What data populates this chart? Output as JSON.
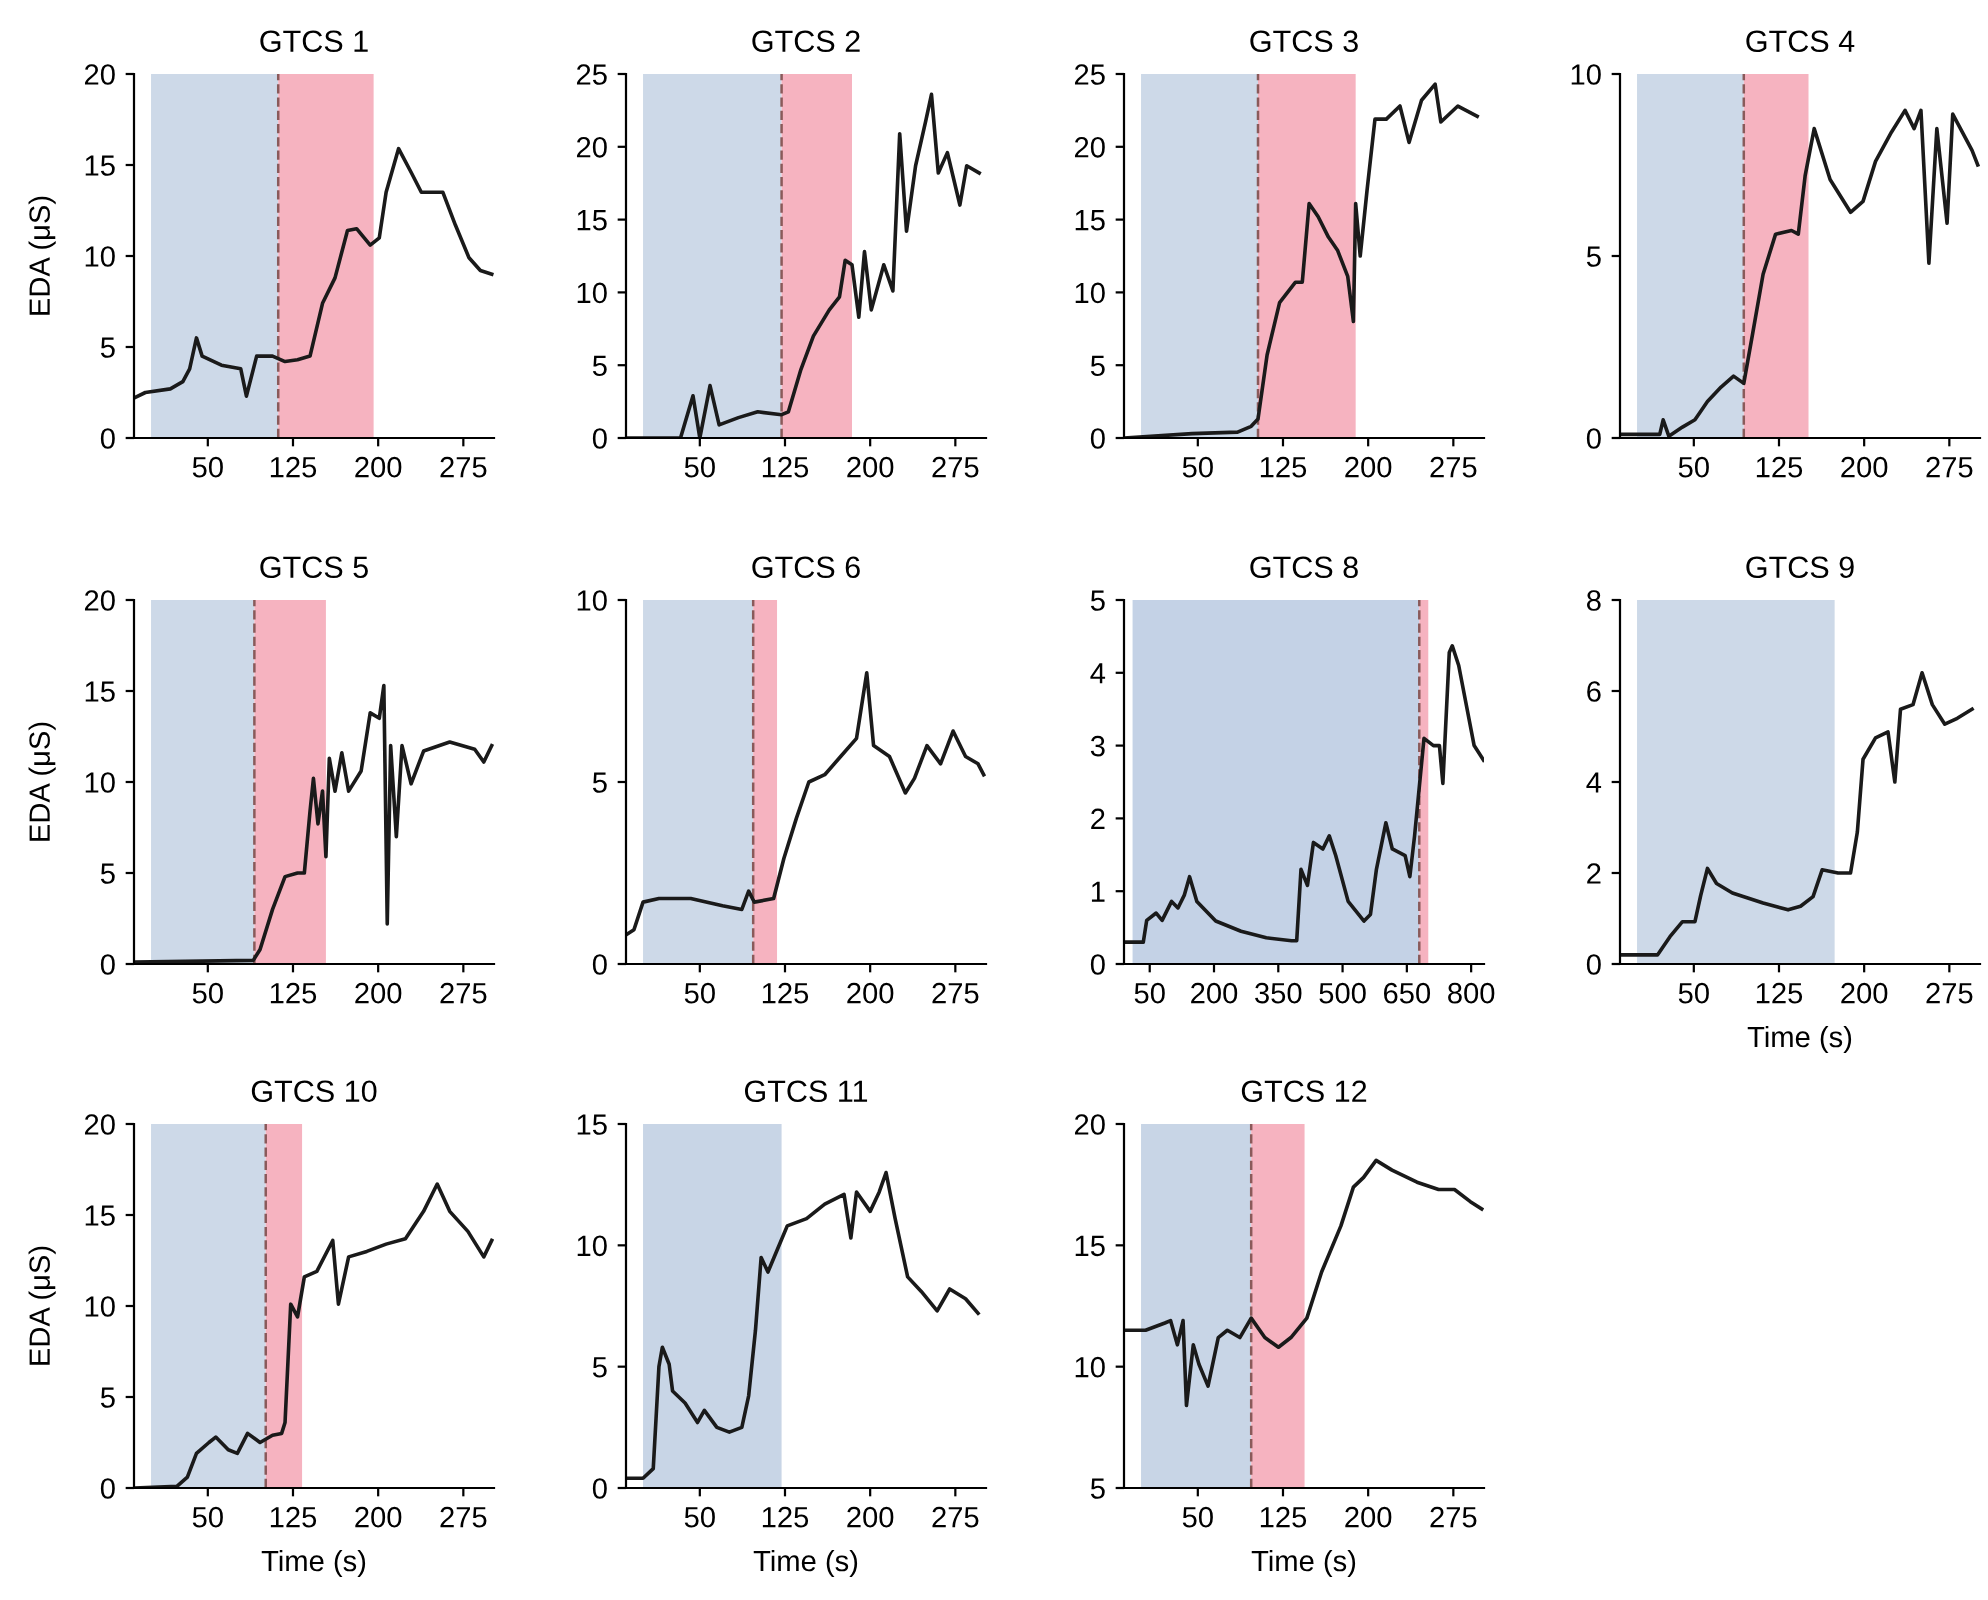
{
  "chart_data": [
    {
      "type": "line",
      "title": "GTCS 1",
      "ylabel": "EDA (μS)",
      "xlim": [
        -15,
        302
      ],
      "xticks": [
        50,
        125,
        200,
        275
      ],
      "ylim": [
        0,
        20
      ],
      "yticks": [
        0,
        5,
        10,
        15,
        20
      ],
      "grid": false,
      "tick_labels": "xy",
      "bands": [
        {
          "axis": "x",
          "from": 0,
          "to": 112,
          "color": "#cdd9e8"
        },
        {
          "axis": "x",
          "from": 112,
          "to": 196,
          "color": "#f6b3c0"
        }
      ],
      "ref_lines": [
        {
          "axis": "x",
          "value": 112,
          "color": "#8a5a5a",
          "line_style": "dashed"
        }
      ],
      "series": [
        {
          "color": "#1a1a1a",
          "x": [
            -15,
            -5,
            17,
            28,
            34,
            40,
            45,
            62,
            79,
            84,
            93,
            107,
            118,
            129,
            140,
            151,
            162,
            173,
            181,
            193,
            201,
            207,
            218,
            229,
            238,
            257,
            268,
            280,
            290,
            300
          ],
          "values": [
            2.2,
            2.5,
            2.7,
            3.1,
            3.8,
            5.5,
            4.5,
            4.0,
            3.8,
            2.3,
            4.5,
            4.5,
            4.2,
            4.3,
            4.5,
            7.4,
            8.8,
            11.4,
            11.5,
            10.6,
            11.0,
            13.5,
            15.9,
            14.6,
            13.5,
            13.5,
            11.7,
            9.9,
            9.2,
            9.0
          ]
        }
      ]
    },
    {
      "type": "line",
      "title": "GTCS 2",
      "xlim": [
        -15,
        302
      ],
      "xticks": [
        50,
        125,
        200,
        275
      ],
      "ylim": [
        0,
        25
      ],
      "yticks": [
        0,
        5,
        10,
        15,
        20,
        25
      ],
      "grid": false,
      "bands": [
        {
          "axis": "x",
          "from": 0,
          "to": 122,
          "color": "#cdd9e8"
        },
        {
          "axis": "x",
          "from": 122,
          "to": 184,
          "color": "#f6b3c0"
        }
      ],
      "ref_lines": [
        {
          "axis": "x",
          "value": 122,
          "color": "#8a5a5a",
          "line_style": "dashed"
        }
      ],
      "series": [
        {
          "color": "#1a1a1a",
          "x": [
            -15,
            33,
            44,
            50,
            59,
            67,
            84,
            101,
            122,
            128,
            139,
            150,
            164,
            173,
            178,
            184,
            190,
            195,
            201,
            212,
            220,
            226,
            232,
            240,
            249,
            254,
            260,
            268,
            279,
            285,
            296
          ],
          "values": [
            0,
            0,
            2.9,
            0,
            3.6,
            0.9,
            1.4,
            1.8,
            1.6,
            1.8,
            4.7,
            7.0,
            8.8,
            9.7,
            12.2,
            11.9,
            8.3,
            12.8,
            8.8,
            11.9,
            10.1,
            20.9,
            14.2,
            18.7,
            21.8,
            23.6,
            18.2,
            19.6,
            16.0,
            18.7,
            18.2
          ]
        }
      ]
    },
    {
      "type": "line",
      "title": "GTCS 3",
      "xlim": [
        -15,
        302
      ],
      "xticks": [
        50,
        125,
        200,
        275
      ],
      "ylim": [
        0,
        25
      ],
      "yticks": [
        0,
        5,
        10,
        15,
        20,
        25
      ],
      "grid": false,
      "bands": [
        {
          "axis": "x",
          "from": 0,
          "to": 103,
          "color": "#cdd9e8"
        },
        {
          "axis": "x",
          "from": 103,
          "to": 189,
          "color": "#f6b3c0"
        }
      ],
      "ref_lines": [
        {
          "axis": "x",
          "value": 103,
          "color": "#8a5a5a",
          "line_style": "dashed"
        }
      ],
      "series": [
        {
          "color": "#1a1a1a",
          "x": [
            -15,
            45,
            85,
            97,
            103,
            111,
            122,
            136,
            142,
            148,
            156,
            165,
            173,
            182,
            187,
            189,
            193,
            199,
            206,
            216,
            228,
            236,
            247,
            259,
            264,
            279,
            296
          ],
          "values": [
            0,
            0.3,
            0.4,
            0.8,
            1.3,
            5.7,
            9.3,
            10.7,
            10.7,
            16.1,
            15.2,
            13.8,
            12.9,
            11.1,
            8.0,
            16.1,
            12.5,
            17.0,
            21.9,
            21.9,
            22.8,
            20.3,
            23.2,
            24.3,
            21.7,
            22.8,
            22.1
          ]
        }
      ]
    },
    {
      "type": "line",
      "title": "GTCS 4",
      "xlim": [
        -15,
        302
      ],
      "xticks": [
        50,
        125,
        200,
        275
      ],
      "ylim": [
        0,
        10
      ],
      "yticks": [
        0,
        5,
        10
      ],
      "grid": false,
      "bands": [
        {
          "axis": "x",
          "from": 0,
          "to": 94,
          "color": "#cdd9e8"
        },
        {
          "axis": "x",
          "from": 94,
          "to": 151,
          "color": "#f6b3c0"
        }
      ],
      "ref_lines": [
        {
          "axis": "x",
          "value": 94,
          "color": "#8a5a5a",
          "line_style": "dashed"
        }
      ],
      "series": [
        {
          "color": "#1a1a1a",
          "x": [
            -14,
            20,
            23,
            28,
            40,
            51,
            62,
            74,
            85,
            94,
            102,
            111,
            122,
            136,
            142,
            148,
            156,
            170,
            188,
            199,
            210,
            224,
            236,
            244,
            250,
            257,
            264,
            273,
            278,
            295,
            300
          ],
          "values": [
            0.1,
            0.1,
            0.5,
            0.05,
            0.3,
            0.5,
            1.0,
            1.4,
            1.7,
            1.5,
            2.9,
            4.5,
            5.6,
            5.7,
            5.6,
            7.2,
            8.5,
            7.1,
            6.2,
            6.5,
            7.6,
            8.4,
            9.0,
            8.5,
            9.0,
            4.8,
            8.5,
            5.9,
            8.9,
            7.9,
            7.5
          ]
        }
      ]
    },
    {
      "type": "line",
      "title": "GTCS 5",
      "ylabel": "EDA (μS)",
      "xlim": [
        -15,
        302
      ],
      "xticks": [
        50,
        125,
        200,
        275
      ],
      "ylim": [
        0,
        20
      ],
      "yticks": [
        0,
        5,
        10,
        15,
        20
      ],
      "grid": false,
      "bands": [
        {
          "axis": "x",
          "from": 0,
          "to": 91,
          "color": "#cdd9e8"
        },
        {
          "axis": "x",
          "from": 91,
          "to": 154,
          "color": "#f6b3c0"
        }
      ],
      "ref_lines": [
        {
          "axis": "x",
          "value": 91,
          "color": "#8a5a5a",
          "line_style": "dashed"
        }
      ],
      "series": [
        {
          "color": "#1a1a1a",
          "x": [
            -15,
            90,
            96,
            107,
            118,
            129,
            135,
            140,
            143,
            147,
            151,
            154,
            157,
            162,
            168,
            174,
            185,
            193,
            201,
            205,
            208,
            211,
            216,
            221,
            229,
            240,
            263,
            285,
            293,
            300
          ],
          "values": [
            0.1,
            0.2,
            0.8,
            3.0,
            4.8,
            5.0,
            5.0,
            8.4,
            10.2,
            7.7,
            9.5,
            5.9,
            11.3,
            9.5,
            11.6,
            9.5,
            10.6,
            13.8,
            13.5,
            15.3,
            2.2,
            12.0,
            7.0,
            12.0,
            9.9,
            11.7,
            12.2,
            11.8,
            11.1,
            12.0
          ]
        }
      ]
    },
    {
      "type": "line",
      "title": "GTCS 6",
      "xlim": [
        -15,
        302
      ],
      "xticks": [
        50,
        125,
        200,
        275
      ],
      "ylim": [
        0,
        10
      ],
      "yticks": [
        0,
        5,
        10
      ],
      "grid": false,
      "bands": [
        {
          "axis": "x",
          "from": 0,
          "to": 97,
          "color": "#cdd9e8"
        },
        {
          "axis": "x",
          "from": 97,
          "to": 118,
          "color": "#f6b3c0"
        }
      ],
      "ref_lines": [
        {
          "axis": "x",
          "value": 97,
          "color": "#8a5a5a",
          "line_style": "dashed"
        }
      ],
      "series": [
        {
          "color": "#1a1a1a",
          "x": [
            -15,
            -8,
            0,
            14,
            42,
            70,
            87,
            93,
            98,
            115,
            124,
            135,
            146,
            160,
            174,
            188,
            197,
            203,
            217,
            231,
            239,
            250,
            262,
            273,
            284,
            295,
            300
          ],
          "values": [
            0.8,
            0.94,
            1.7,
            1.8,
            1.8,
            1.6,
            1.5,
            2.0,
            1.7,
            1.8,
            2.9,
            4.0,
            5.0,
            5.2,
            5.7,
            6.2,
            8.0,
            6.0,
            5.7,
            4.7,
            5.1,
            6.0,
            5.5,
            6.4,
            5.7,
            5.5,
            5.2
          ]
        }
      ]
    },
    {
      "type": "line",
      "title": "GTCS 8",
      "xlim": [
        -10,
        830
      ],
      "xticks": [
        50,
        200,
        350,
        500,
        650,
        800
      ],
      "ylim": [
        0,
        5
      ],
      "yticks": [
        0,
        1,
        2,
        3,
        4,
        5
      ],
      "grid": false,
      "bands": [
        {
          "axis": "x",
          "from": 10,
          "to": 679,
          "color": "#c4d2e6"
        },
        {
          "axis": "x",
          "from": 679,
          "to": 700,
          "color": "#f6b3c0"
        }
      ],
      "ref_lines": [
        {
          "axis": "x",
          "value": 679,
          "color": "#8a5a5a",
          "line_style": "dashed"
        }
      ],
      "series": [
        {
          "color": "#1a1a1a",
          "x": [
            -9,
            35,
            43,
            65,
            79,
            101,
            116,
            131,
            143,
            160,
            204,
            263,
            322,
            381,
            393,
            403,
            418,
            432,
            454,
            469,
            484,
            513,
            550,
            565,
            579,
            601,
            616,
            646,
            657,
            668,
            690,
            712,
            726,
            734,
            749,
            756,
            771,
            807,
            829
          ],
          "values": [
            0.3,
            0.3,
            0.6,
            0.7,
            0.6,
            0.86,
            0.77,
            0.95,
            1.2,
            0.86,
            0.59,
            0.45,
            0.36,
            0.32,
            0.32,
            1.3,
            1.08,
            1.67,
            1.58,
            1.76,
            1.49,
            0.86,
            0.59,
            0.68,
            1.3,
            1.94,
            1.58,
            1.49,
            1.2,
            1.76,
            3.1,
            3.0,
            3.0,
            2.48,
            4.28,
            4.37,
            4.1,
            3.0,
            2.8
          ]
        }
      ]
    },
    {
      "type": "line",
      "title": "GTCS 9",
      "xlabel": "Time (s)",
      "xlim": [
        -15,
        302
      ],
      "xticks": [
        50,
        125,
        200,
        275
      ],
      "ylim": [
        0,
        8
      ],
      "yticks": [
        0,
        2,
        4,
        6,
        8
      ],
      "grid": false,
      "bands": [
        {
          "axis": "x",
          "from": 0,
          "to": 174,
          "color": "#cdd9e8"
        }
      ],
      "series": [
        {
          "color": "#1a1a1a",
          "x": [
            -15,
            18,
            29,
            40,
            51,
            56,
            62,
            70,
            84,
            111,
            133,
            144,
            155,
            163,
            177,
            188,
            194,
            199,
            210,
            221,
            227,
            232,
            243,
            251,
            260,
            271,
            282,
            295
          ],
          "values": [
            0.2,
            0.2,
            0.6,
            0.93,
            0.93,
            1.5,
            2.1,
            1.77,
            1.56,
            1.34,
            1.19,
            1.27,
            1.48,
            2.07,
            2.0,
            2.0,
            2.9,
            4.5,
            4.97,
            5.1,
            4.0,
            5.6,
            5.7,
            6.4,
            5.7,
            5.27,
            5.4,
            5.6
          ]
        }
      ]
    },
    {
      "type": "line",
      "title": "GTCS 10",
      "ylabel": "EDA (μS)",
      "xlabel": "Time (s)",
      "xlim": [
        -15,
        302
      ],
      "xticks": [
        50,
        125,
        200,
        275
      ],
      "ylim": [
        0,
        20
      ],
      "yticks": [
        0,
        5,
        10,
        15,
        20
      ],
      "grid": false,
      "bands": [
        {
          "axis": "x",
          "from": 0,
          "to": 101,
          "color": "#cdd9e8"
        },
        {
          "axis": "x",
          "from": 101,
          "to": 133,
          "color": "#f6b3c0"
        }
      ],
      "ref_lines": [
        {
          "axis": "x",
          "value": 101,
          "color": "#8a5a5a",
          "line_style": "dashed"
        }
      ],
      "series": [
        {
          "color": "#1a1a1a",
          "x": [
            -15,
            23,
            32,
            40,
            51,
            57,
            68,
            76,
            85,
            96,
            107,
            115,
            118,
            123,
            129,
            135,
            146,
            160,
            165,
            174,
            190,
            207,
            224,
            240,
            252,
            263,
            279,
            293,
            300
          ],
          "values": [
            0,
            0.1,
            0.6,
            1.9,
            2.5,
            2.8,
            2.1,
            1.9,
            3.0,
            2.5,
            2.9,
            3.0,
            3.6,
            10.1,
            9.4,
            11.6,
            11.9,
            13.6,
            10.1,
            12.7,
            13.0,
            13.4,
            13.7,
            15.2,
            16.7,
            15.2,
            14.1,
            12.7,
            13.6
          ]
        }
      ]
    },
    {
      "type": "line",
      "title": "GTCS 11",
      "xlabel": "Time (s)",
      "xlim": [
        -15,
        302
      ],
      "xticks": [
        50,
        125,
        200,
        275
      ],
      "ylim": [
        0,
        15
      ],
      "yticks": [
        0,
        5,
        10,
        15
      ],
      "grid": false,
      "bands": [
        {
          "axis": "x",
          "from": 0,
          "to": 122,
          "color": "#c8d5e6"
        }
      ],
      "series": [
        {
          "color": "#1a1a1a",
          "x": [
            -15,
            0,
            9,
            14,
            17,
            23,
            26,
            37,
            48,
            54,
            65,
            76,
            87,
            93,
            99,
            104,
            110,
            118,
            127,
            144,
            160,
            177,
            183,
            188,
            200,
            208,
            214,
            222,
            233,
            245,
            259,
            270,
            284,
            295
          ],
          "values": [
            0.4,
            0.4,
            0.8,
            5.0,
            5.8,
            5.1,
            4.0,
            3.5,
            2.7,
            3.2,
            2.5,
            2.3,
            2.5,
            3.8,
            6.5,
            9.5,
            8.9,
            9.8,
            10.8,
            11.1,
            11.7,
            12.1,
            10.3,
            12.2,
            11.4,
            12.2,
            13.0,
            11.1,
            8.7,
            8.1,
            7.3,
            8.2,
            7.8,
            7.2
          ]
        }
      ]
    },
    {
      "type": "line",
      "title": "GTCS 12",
      "xlabel": "Time (s)",
      "xlim": [
        -15,
        302
      ],
      "xticks": [
        50,
        125,
        200,
        275
      ],
      "ylim": [
        5,
        20
      ],
      "yticks": [
        5,
        10,
        15,
        20
      ],
      "grid": false,
      "bands": [
        {
          "axis": "x",
          "from": 0,
          "to": 97,
          "color": "#c8d5e6"
        },
        {
          "axis": "x",
          "from": 97,
          "to": 144,
          "color": "#f6b3c0"
        }
      ],
      "ref_lines": [
        {
          "axis": "x",
          "value": 97,
          "color": "#8a5a5a",
          "line_style": "dashed"
        }
      ],
      "series": [
        {
          "color": "#1a1a1a",
          "x": [
            -15,
            4,
            21,
            26,
            32,
            37,
            40,
            46,
            51,
            59,
            68,
            76,
            87,
            97,
            109,
            121,
            132,
            146,
            159,
            176,
            187,
            196,
            207,
            221,
            243,
            262,
            276,
            290,
            300
          ],
          "values": [
            11.5,
            11.5,
            11.8,
            11.9,
            10.9,
            11.9,
            8.4,
            10.9,
            10.1,
            9.2,
            11.2,
            11.5,
            11.2,
            12.0,
            11.2,
            10.8,
            11.2,
            12.0,
            13.9,
            15.8,
            17.4,
            17.8,
            18.5,
            18.1,
            17.6,
            17.3,
            17.3,
            16.8,
            16.5
          ]
        }
      ]
    }
  ]
}
